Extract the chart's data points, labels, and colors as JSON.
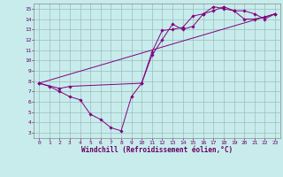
{
  "bg_color": "#c8ecec",
  "line_color": "#800080",
  "xlabel": "Windchill (Refroidissement éolien,°C)",
  "xlim": [
    -0.5,
    23.5
  ],
  "ylim": [
    2.5,
    15.5
  ],
  "xticks": [
    0,
    1,
    2,
    3,
    4,
    5,
    6,
    7,
    8,
    9,
    10,
    11,
    12,
    13,
    14,
    15,
    16,
    17,
    18,
    19,
    20,
    21,
    22,
    23
  ],
  "yticks": [
    3,
    4,
    5,
    6,
    7,
    8,
    9,
    10,
    11,
    12,
    13,
    14,
    15
  ],
  "line1_x": [
    0,
    1,
    2,
    3,
    4,
    5,
    6,
    7,
    8,
    9,
    10,
    11,
    12,
    13,
    14,
    15,
    16,
    17,
    18,
    19,
    20,
    21,
    22,
    23
  ],
  "line1_y": [
    7.8,
    7.5,
    7.0,
    6.5,
    6.2,
    4.8,
    4.3,
    3.5,
    3.2,
    6.5,
    7.8,
    10.8,
    12.9,
    13.0,
    13.2,
    14.3,
    14.5,
    14.8,
    15.2,
    14.8,
    14.0,
    14.0,
    14.2,
    14.5
  ],
  "line2_x": [
    0,
    2,
    3,
    10,
    11,
    12,
    13,
    14,
    15,
    16,
    17,
    18,
    19,
    20,
    21,
    22,
    23
  ],
  "line2_y": [
    7.8,
    7.3,
    7.5,
    7.8,
    10.5,
    12.0,
    13.5,
    13.0,
    13.3,
    14.5,
    15.2,
    15.0,
    14.8,
    14.8,
    14.5,
    14.0,
    14.5
  ],
  "line3_x": [
    0,
    23
  ],
  "line3_y": [
    7.8,
    14.5
  ],
  "grid_color": "#9cbcbc",
  "tick_color": "#660066",
  "label_fontsize": 4.5,
  "xlabel_fontsize": 5.5
}
